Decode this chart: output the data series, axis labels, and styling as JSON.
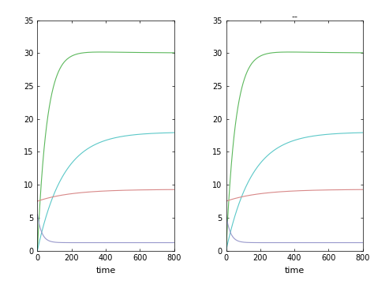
{
  "title_right": "--",
  "xlabel": "time",
  "xlim": [
    0,
    800
  ],
  "ylim": [
    0,
    35
  ],
  "yticks": [
    0,
    5,
    10,
    15,
    20,
    25,
    30,
    35
  ],
  "xticks": [
    0,
    200,
    400,
    600,
    800
  ],
  "colors": {
    "green": "#5cb85c",
    "cyan": "#5bc8c8",
    "red": "#d88888",
    "blue": "#9999cc"
  },
  "green_peak": 30.4,
  "green_plateau": 30.0,
  "green_tau": 55,
  "green_decay_tau": 300,
  "cyan_plateau": 18.0,
  "cyan_tau": 150,
  "red_start": 7.5,
  "red_plateau": 9.3,
  "red_tau": 200,
  "blue_start": 5.5,
  "blue_plateau": 1.2,
  "blue_tau": 25,
  "figsize": [
    4.74,
    3.65
  ],
  "dpi": 100
}
